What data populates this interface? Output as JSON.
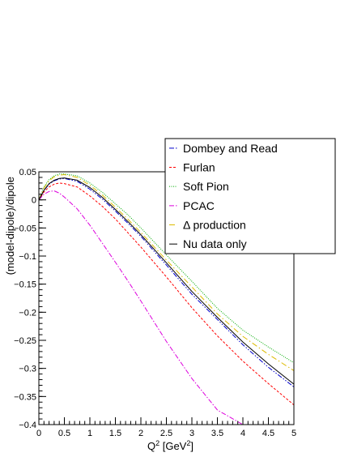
{
  "chart_data": {
    "type": "line",
    "title": "",
    "xlabel": "Q",
    "xlabel_sup": "2",
    "xlabel_unit_open": " [GeV",
    "xlabel_unit_sup": "2",
    "xlabel_unit_close": "]",
    "ylabel": "(model-dipole)/dipole",
    "xlim": [
      0,
      5
    ],
    "ylim": [
      -0.4,
      0.05
    ],
    "xticks": [
      0,
      0.5,
      1,
      1.5,
      2,
      2.5,
      3,
      3.5,
      4,
      4.5,
      5
    ],
    "xtick_labels": [
      "0",
      "0.5",
      "1",
      "1.5",
      "2",
      "2.5",
      "3",
      "3.5",
      "4",
      "4.5",
      "5"
    ],
    "yticks": [
      0.05,
      0,
      -0.05,
      -0.1,
      -0.15,
      -0.2,
      -0.25,
      -0.3,
      -0.35,
      -0.4
    ],
    "ytick_labels": [
      "0.05",
      "0",
      "−0.05",
      "−0.1",
      "−0.15",
      "−0.2",
      "−0.25",
      "−0.3",
      "−0.35",
      "−0.4"
    ],
    "grid": false,
    "legend_position": "top-right",
    "x": [
      0,
      0.1,
      0.2,
      0.3,
      0.4,
      0.5,
      0.75,
      1,
      1.25,
      1.5,
      1.75,
      2,
      2.5,
      3,
      3.5,
      4,
      4.5,
      5
    ],
    "series": [
      {
        "name": "Dombey and Read",
        "color": "#0000cc",
        "dash": "6,2,1.5,2,1.5,2",
        "values": [
          0,
          0.017,
          0.028,
          0.034,
          0.037,
          0.038,
          0.033,
          0.019,
          0.001,
          -0.02,
          -0.042,
          -0.065,
          -0.116,
          -0.168,
          -0.213,
          -0.258,
          -0.298,
          -0.333
        ]
      },
      {
        "name": "Furlan",
        "color": "#ff0000",
        "dash": "3,2",
        "values": [
          0,
          0.014,
          0.023,
          0.028,
          0.03,
          0.029,
          0.023,
          0.007,
          -0.012,
          -0.034,
          -0.059,
          -0.084,
          -0.137,
          -0.192,
          -0.242,
          -0.287,
          -0.327,
          -0.365
        ]
      },
      {
        "name": "Soft Pion",
        "color": "#00aa00",
        "dash": "1,1.5",
        "values": [
          0,
          0.023,
          0.036,
          0.043,
          0.046,
          0.046,
          0.043,
          0.03,
          0.013,
          -0.007,
          -0.027,
          -0.05,
          -0.098,
          -0.145,
          -0.193,
          -0.232,
          -0.262,
          -0.29
        ]
      },
      {
        "name": "PCAC",
        "color": "#dd00dd",
        "dash": "6,2,1.5,2",
        "values": [
          0,
          0.01,
          0.015,
          0.016,
          0.012,
          0.005,
          -0.016,
          -0.045,
          -0.078,
          -0.111,
          -0.145,
          -0.18,
          -0.252,
          -0.318,
          -0.374,
          -0.4,
          null,
          null
        ]
      },
      {
        "name": "Δ production",
        "color": "#ddbb00",
        "dash": "7,3,1.5,3",
        "values": [
          0,
          0.021,
          0.034,
          0.041,
          0.044,
          0.045,
          0.04,
          0.026,
          0.008,
          -0.013,
          -0.035,
          -0.058,
          -0.107,
          -0.155,
          -0.203,
          -0.243,
          -0.275,
          -0.304
        ]
      },
      {
        "name": "Nu data only",
        "color": "#000000",
        "dash": "",
        "values": [
          0,
          0.017,
          0.029,
          0.035,
          0.038,
          0.039,
          0.035,
          0.022,
          0.004,
          -0.017,
          -0.039,
          -0.062,
          -0.112,
          -0.163,
          -0.209,
          -0.253,
          -0.292,
          -0.328
        ]
      }
    ]
  }
}
